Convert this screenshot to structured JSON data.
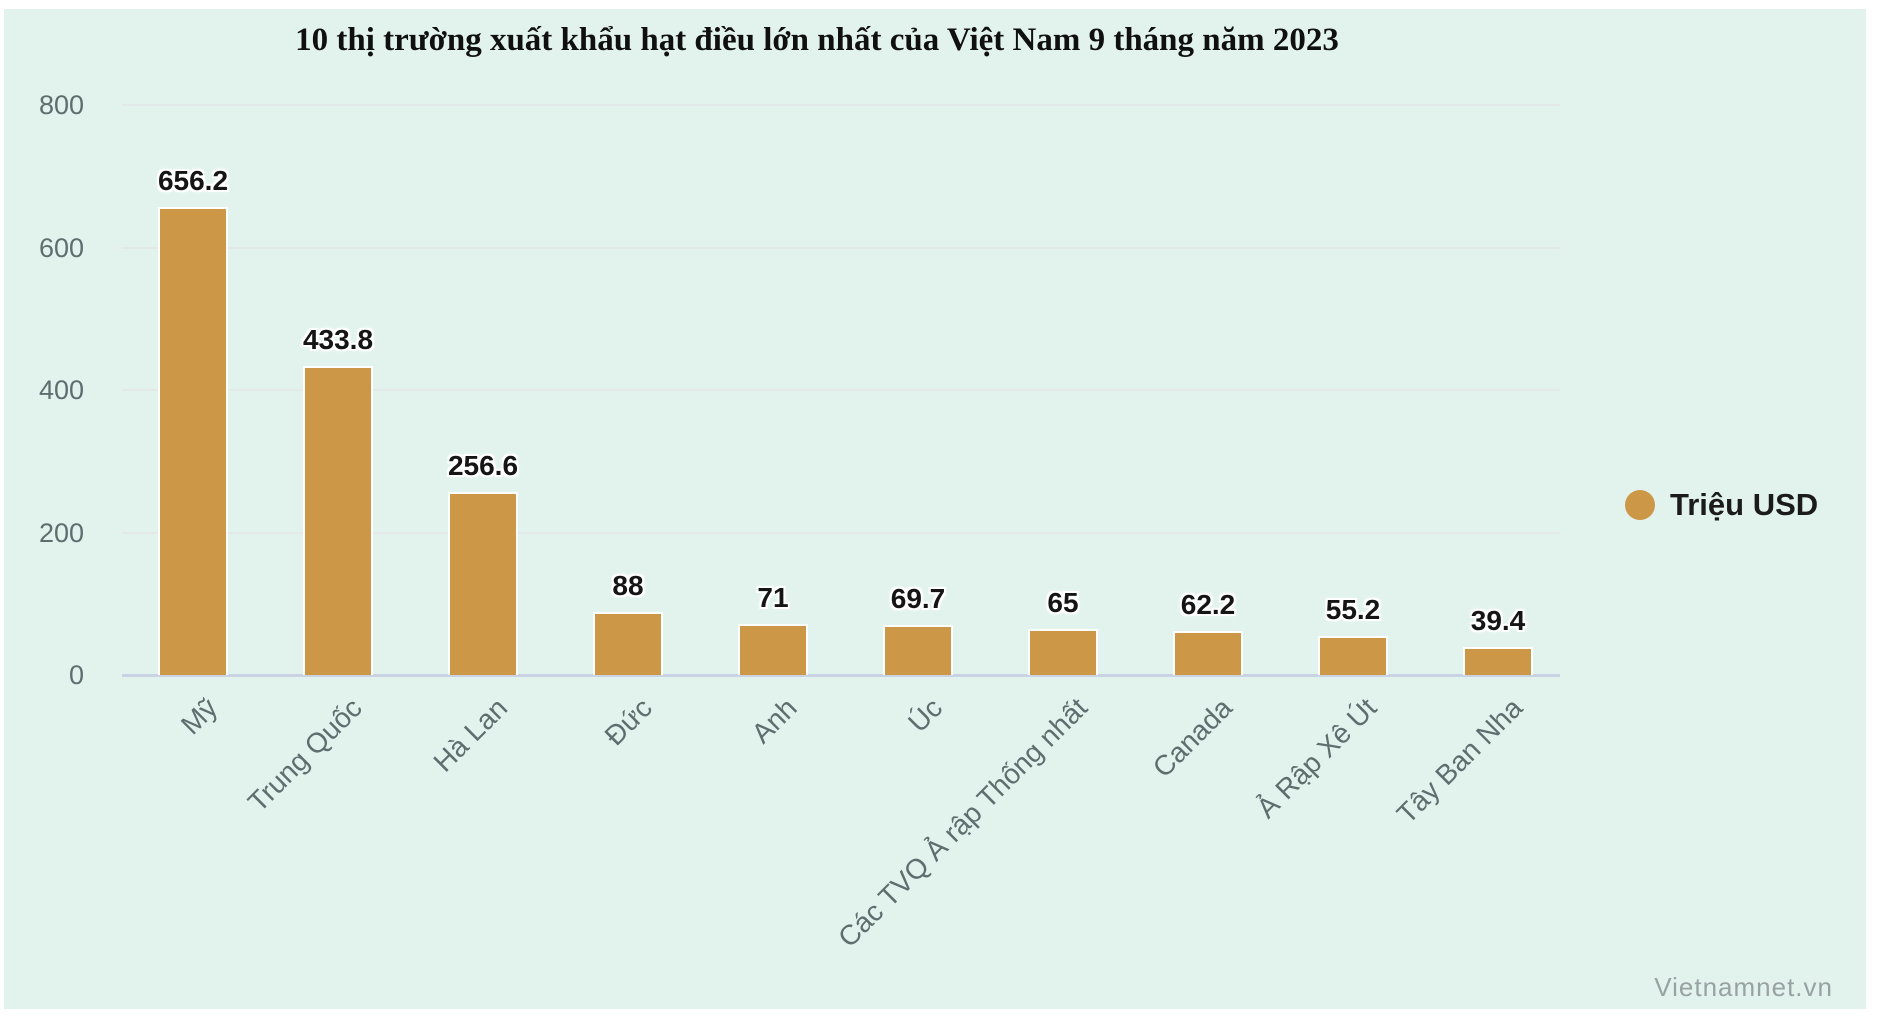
{
  "watermark": "Vietnamnet.vn",
  "chart_data": {
    "type": "bar",
    "title": "10 thị trường xuất khẩu hạt điều lớn nhất của Việt Nam 9 tháng năm 2023",
    "categories": [
      "Mỹ",
      "Trung Quốc",
      "Hà Lan",
      "Đức",
      "Anh",
      "Úc",
      "Các TVQ Ả rập Thống nhất",
      "Canada",
      "Ả Rập Xê Út",
      "Tây Ban Nha"
    ],
    "values": [
      656.2,
      433.8,
      256.6,
      88,
      71,
      69.7,
      65,
      62.2,
      55.2,
      39.4
    ],
    "value_labels": [
      "656.2",
      "433.8",
      "256.6",
      "88",
      "71",
      "69.7",
      "65",
      "62.2",
      "55.2",
      "39.4"
    ],
    "legend": [
      {
        "label": "Triệu USD",
        "color": "#cd9748",
        "marker": "circle"
      }
    ],
    "legend_position": "right",
    "xlabel": "",
    "ylabel": "",
    "ylim": [
      0,
      800
    ],
    "yticks": [
      0,
      200,
      400,
      600,
      800
    ],
    "grid": true,
    "colors": {
      "bar": "#cd9748",
      "panel_background": "#e2f3ee",
      "page_background": "#ffffff",
      "axis_line": "#c9d3e4",
      "gridline": "#e3e9e8",
      "tick_label": "#5e6e6e",
      "value_label": "#151515",
      "title": "#101010",
      "legend_text": "#1b1b1b",
      "watermark": "#98a2a2"
    }
  }
}
